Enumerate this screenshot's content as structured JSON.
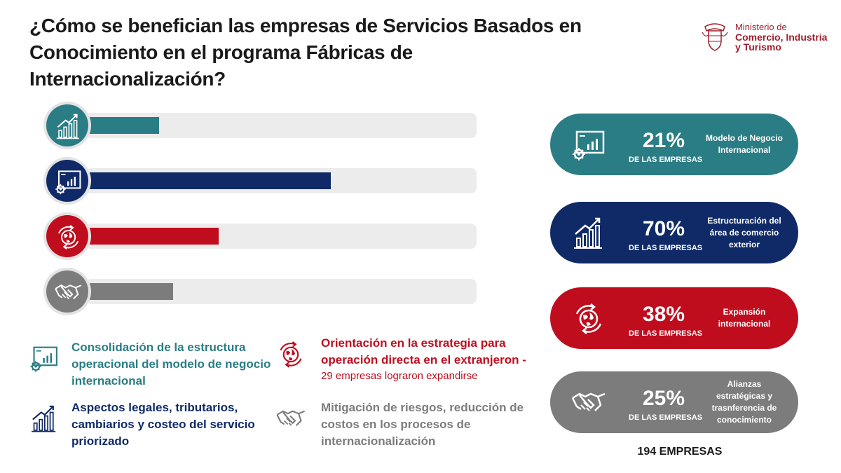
{
  "title": "¿Cómo se benefician las empresas de Servicios Basados en Conocimiento en el programa Fábricas de Internacionalización?",
  "ministry": {
    "line1": "Ministerio de",
    "line2": "Comercio, Industria",
    "line3": "y Turismo"
  },
  "colors": {
    "teal": "#2a7d84",
    "navy": "#0f2a66",
    "red": "#c00d1e",
    "gray": "#7c7c7c",
    "track": "#ececec"
  },
  "chart_data": {
    "type": "bar",
    "orientation": "horizontal",
    "xlim": [
      0,
      100
    ],
    "categories": [
      "Consolidación de la estructura operacional del modelo de negocio internacional",
      "Aspectos legales, tributarios, cambiarios y costeo del servicio priorizado",
      "Orientación en la estrategia para operación directa en el extranjeron",
      "Mitigación de riesgos, reducción de costos en los procesos de internacionalización"
    ],
    "values": [
      21,
      70,
      38,
      25
    ],
    "colors": [
      "#2a7d84",
      "#0f2a66",
      "#c00d1e",
      "#7c7c7c"
    ],
    "icons": [
      "growth-chart-icon",
      "dashboard-gear-icon",
      "globe-arrows-icon",
      "handshake-icon"
    ]
  },
  "cards": [
    {
      "pct": "21%",
      "sub": "DE LAS EMPRESAS",
      "label": "Modelo de Negocio Internacional",
      "icon": "dashboard-gear-icon",
      "color": "#2a7d84"
    },
    {
      "pct": "70%",
      "sub": "DE LAS EMPRESAS",
      "label": "Estructuración del área de comercio exterior",
      "icon": "growth-chart-icon",
      "color": "#0f2a66"
    },
    {
      "pct": "38%",
      "sub": "DE LAS EMPRESAS",
      "label": "Expansión internacional",
      "icon": "globe-arrows-icon",
      "color": "#c00d1e"
    },
    {
      "pct": "25%",
      "sub": "DE LAS EMPRESAS",
      "label": "Alianzas estratégicas y trasnferencia de conocimiento",
      "icon": "handshake-icon",
      "color": "#7c7c7c"
    }
  ],
  "total": "194 EMPRESAS",
  "legend": [
    {
      "text": "Consolidación de la estructura operacional del modelo de negocio internacional",
      "icon": "dashboard-gear-icon",
      "color": "#2a7d84"
    },
    {
      "text": "Aspectos legales, tributarios, cambiarios y costeo del servicio priorizado",
      "icon": "growth-chart-icon",
      "color": "#0f2a66"
    },
    {
      "text": "Orientación en la estrategia para operación directa en el extranjeron -",
      "note": "29 empresas lograron expandirse",
      "icon": "globe-arrows-icon",
      "color": "#c00d1e"
    },
    {
      "text": "Mitigación de riesgos, reducción de costos en los procesos de internacionalización",
      "icon": "handshake-icon",
      "color": "#7c7c7c"
    }
  ]
}
